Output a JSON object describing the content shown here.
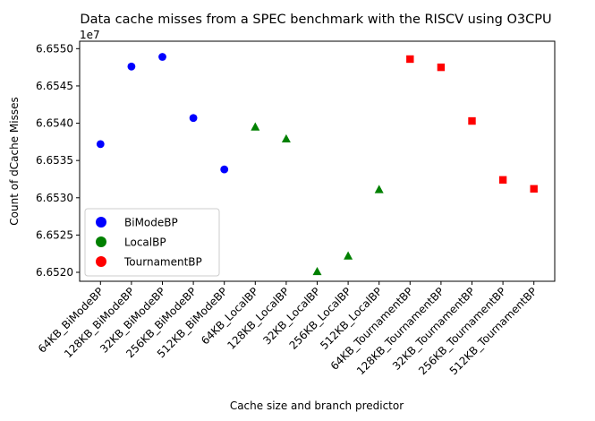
{
  "chart_data": {
    "type": "scatter",
    "title": "Data cache misses from a SPEC benchmark with the RISCV using O3CPU",
    "xlabel": "Cache size and branch predictor",
    "ylabel": "Count of dCache Misses",
    "y_offset_label": "1e7",
    "y_scale": 10000000,
    "ylim": [
      66518800,
      66551000
    ],
    "y_ticks": [
      66520000,
      66525000,
      66530000,
      66535000,
      66540000,
      66545000,
      66550000
    ],
    "y_tick_labels": [
      "6.6520",
      "6.6525",
      "6.6530",
      "6.6535",
      "6.6540",
      "6.6545",
      "6.6550"
    ],
    "categories": [
      "64KB_BiModeBP",
      "128KB_BiModeBP",
      "32KB_BiModeBP",
      "256KB_BiModeBP",
      "512KB_BiModeBP",
      "64KB_LocalBP",
      "128KB_LocalBP",
      "32KB_LocalBP",
      "256KB_LocalBP",
      "512KB_LocalBP",
      "64KB_TournamentBP",
      "128KB_TournamentBP",
      "32KB_TournamentBP",
      "256KB_TournamentBP",
      "512KB_TournamentBP"
    ],
    "grid": false,
    "legend_position": "lower-left",
    "series": [
      {
        "name": "BiModeBP",
        "color": "#0000ff",
        "marker": "circle",
        "x": [
          "64KB_BiModeBP",
          "128KB_BiModeBP",
          "32KB_BiModeBP",
          "256KB_BiModeBP",
          "512KB_BiModeBP"
        ],
        "values": [
          66537200,
          66547600,
          66548900,
          66540700,
          66533800
        ]
      },
      {
        "name": "LocalBP",
        "color": "#008000",
        "marker": "triangle",
        "x": [
          "64KB_LocalBP",
          "128KB_LocalBP",
          "32KB_LocalBP",
          "256KB_LocalBP",
          "512KB_LocalBP"
        ],
        "values": [
          66539500,
          66537900,
          66520100,
          66522200,
          66531100
        ]
      },
      {
        "name": "TournamentBP",
        "color": "#ff0000",
        "marker": "square",
        "x": [
          "64KB_TournamentBP",
          "128KB_TournamentBP",
          "32KB_TournamentBP",
          "256KB_TournamentBP",
          "512KB_TournamentBP"
        ],
        "values": [
          66548600,
          66547500,
          66540300,
          66532400,
          66531200
        ]
      }
    ]
  }
}
